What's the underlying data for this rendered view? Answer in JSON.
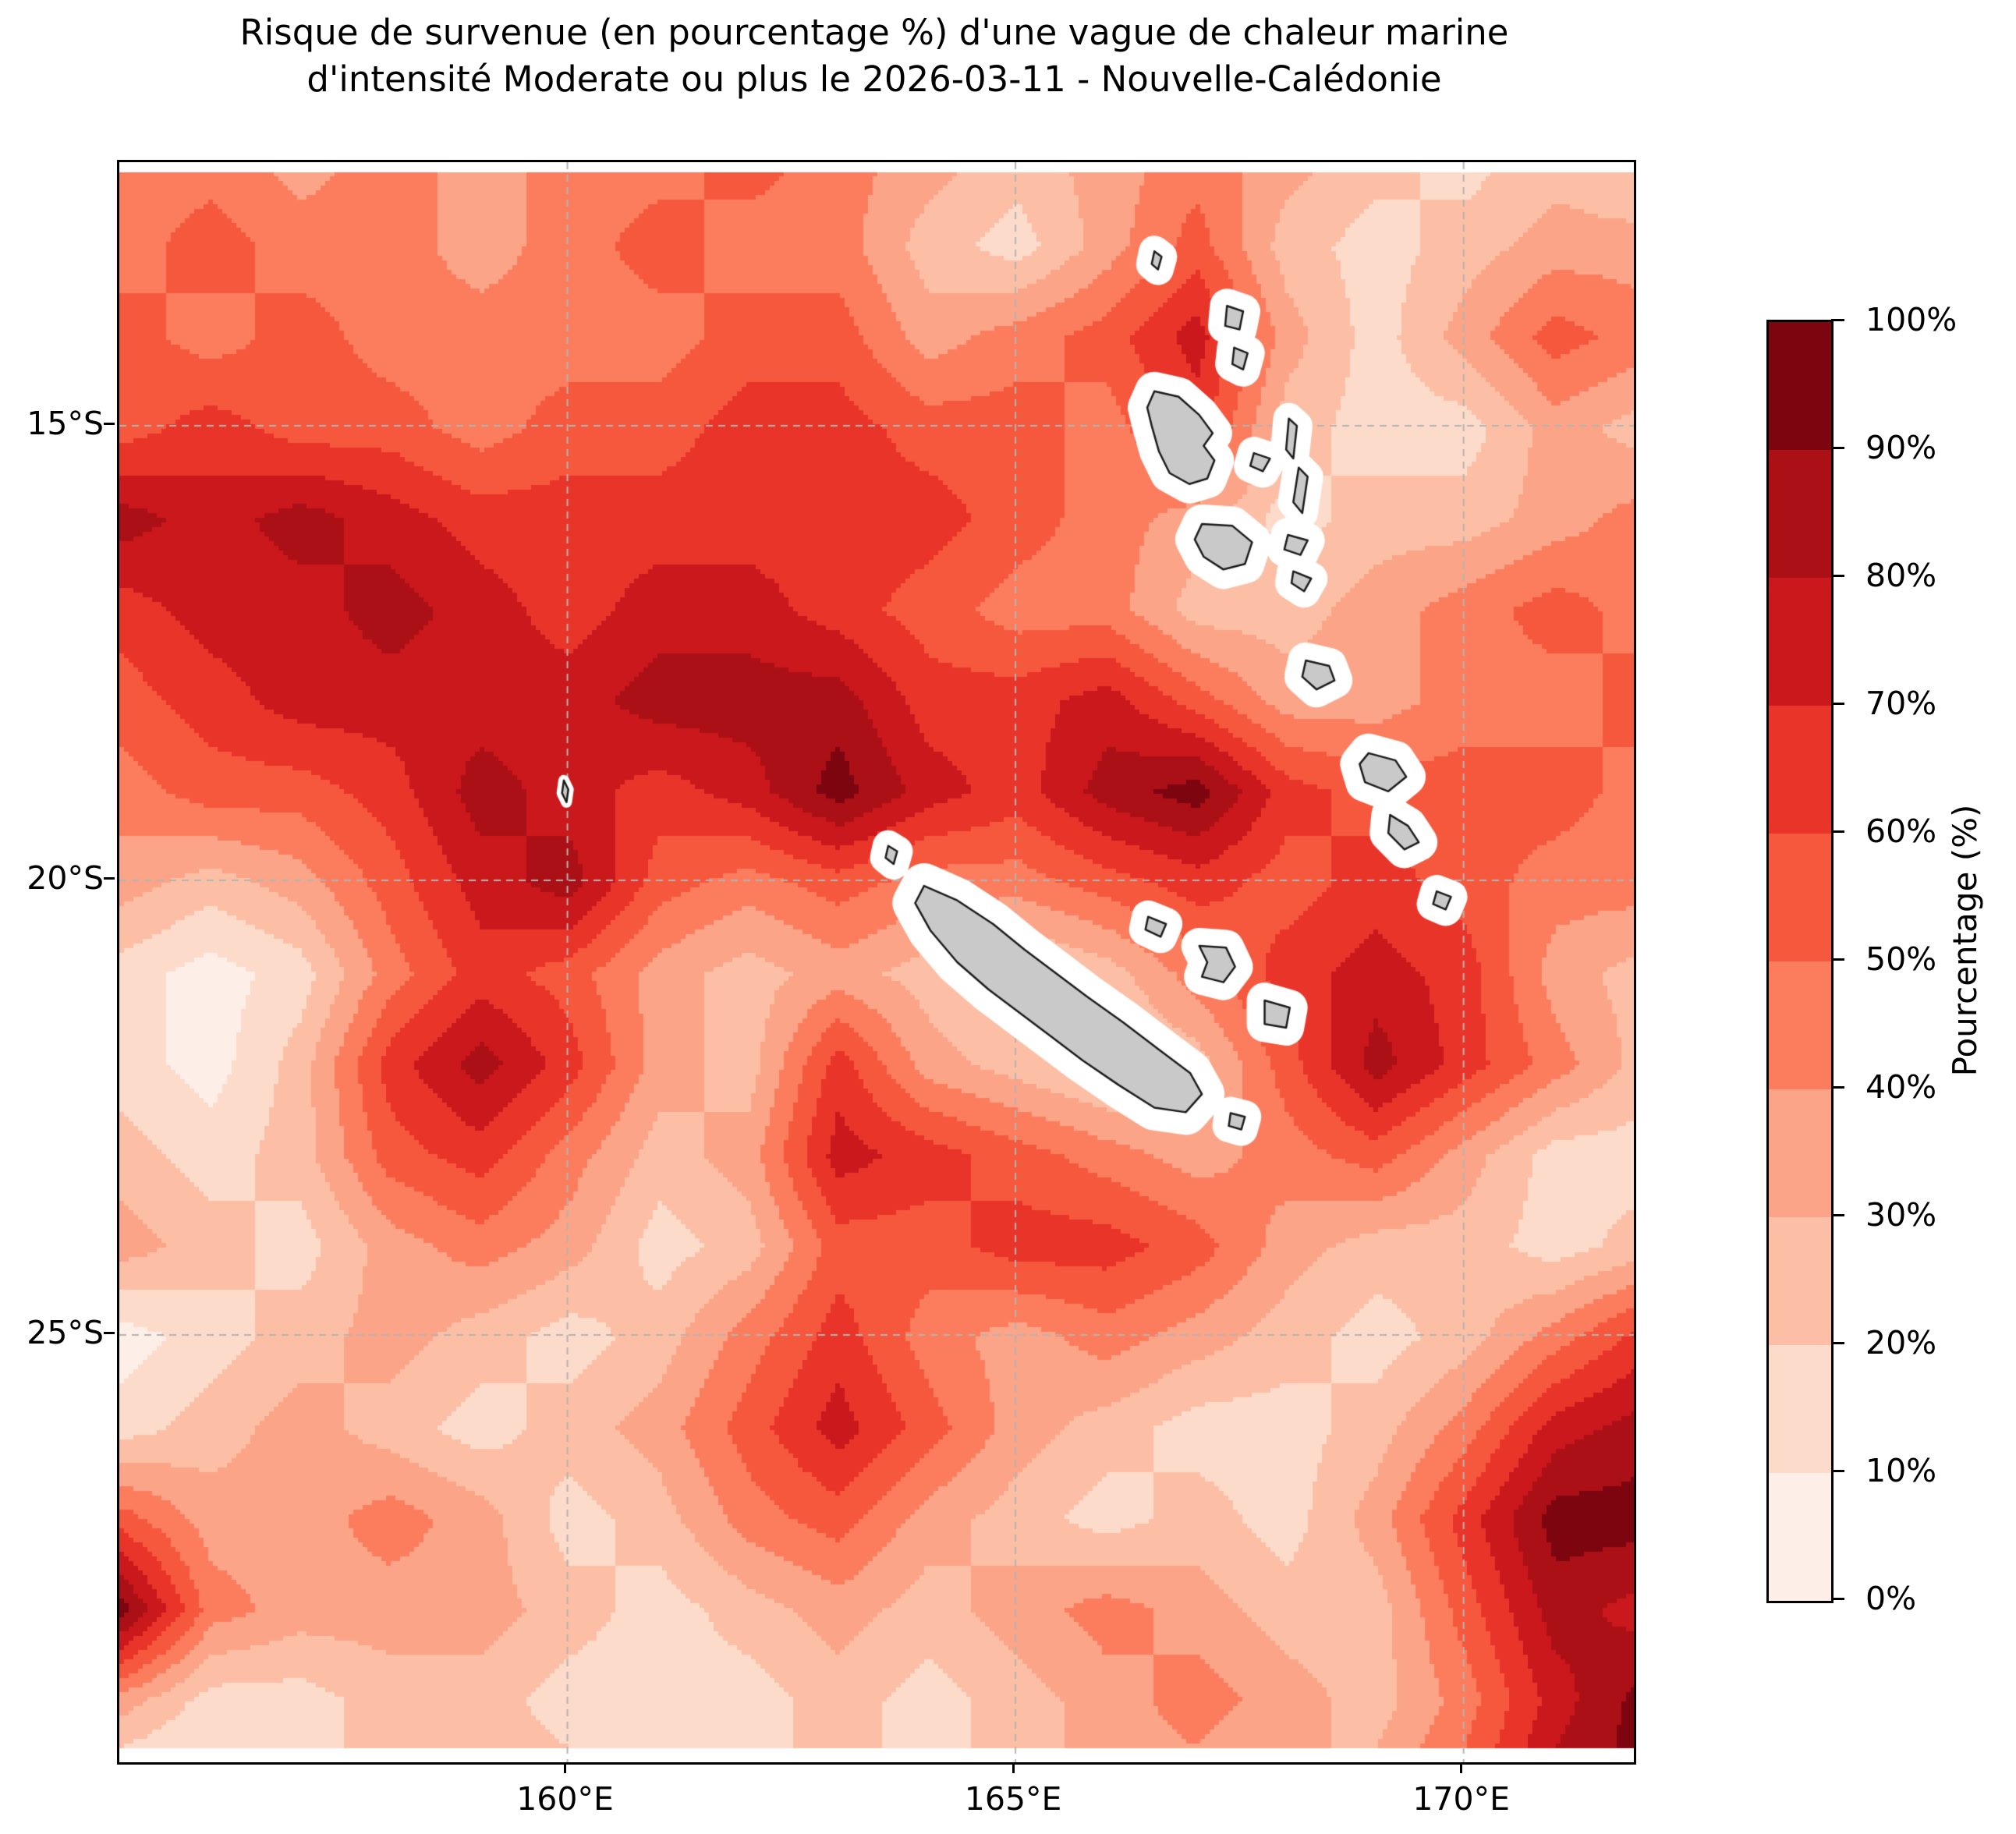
{
  "title": {
    "line1": "Risque de survenue (en pourcentage %) d'une vague de chaleur marine",
    "line2": "d'intensité Moderate ou plus le 2026-03-11 - Nouvelle-Calédonie"
  },
  "map": {
    "x_ticks": [
      {
        "label": "160°E",
        "lon": 160
      },
      {
        "label": "165°E",
        "lon": 165
      },
      {
        "label": "170°E",
        "lon": 170
      }
    ],
    "y_ticks": [
      {
        "label": "15°S",
        "lat": -15
      },
      {
        "label": "20°S",
        "lat": -20
      },
      {
        "label": "25°S",
        "lat": -25
      }
    ],
    "extent": {
      "lon_min": 155.0,
      "lon_max": 171.9,
      "lat_min": -29.7,
      "lat_max": -12.1
    },
    "grid_color": "#b3b3b3",
    "land_fill": "#c9c9c9",
    "land_outline": "#1a1a1a",
    "coast_mask_color": "#ffffff"
  },
  "colorbar": {
    "label": "Pourcentage (%)",
    "tick_labels": [
      "0%",
      "10%",
      "20%",
      "30%",
      "40%",
      "50%",
      "60%",
      "70%",
      "80%",
      "90%",
      "100%"
    ],
    "colors": [
      "#fdeee7",
      "#fddbca",
      "#fcbfa5",
      "#fca487",
      "#fb7d5e",
      "#f6583e",
      "#e93529",
      "#cb181d",
      "#ab1016",
      "#7d0510"
    ]
  },
  "chart_data": {
    "type": "heatmap",
    "title": "Risque de survenue (en pourcentage %) d'une vague de chaleur marine d'intensité Moderate ou plus le 2026-03-11 - Nouvelle-Calédonie",
    "ylabel": "Pourcentage (%)",
    "units": "percent",
    "levels_percent": [
      0,
      10,
      20,
      30,
      40,
      50,
      60,
      70,
      80,
      90,
      100
    ],
    "legend_position": "right",
    "grid_on": true,
    "lons": [
      155,
      156,
      157,
      158,
      159,
      160,
      161,
      162,
      163,
      164,
      165,
      166,
      167,
      168,
      169,
      170,
      171,
      172
    ],
    "lats": [
      -12,
      -13,
      -14,
      -15,
      -16,
      -17,
      -18,
      -19,
      -20,
      -21,
      -22,
      -23,
      -24,
      -25,
      -26,
      -27,
      -28,
      -29,
      -30
    ],
    "values_percent": [
      [
        45,
        45,
        35,
        45,
        35,
        45,
        45,
        55,
        45,
        35,
        25,
        35,
        45,
        35,
        25,
        15,
        25,
        15
      ],
      [
        45,
        55,
        45,
        45,
        35,
        45,
        55,
        45,
        45,
        25,
        15,
        35,
        55,
        25,
        15,
        25,
        35,
        35
      ],
      [
        55,
        45,
        55,
        45,
        45,
        45,
        45,
        55,
        55,
        35,
        45,
        55,
        75,
        35,
        15,
        35,
        55,
        45
      ],
      [
        55,
        65,
        55,
        55,
        45,
        55,
        55,
        65,
        65,
        55,
        55,
        45,
        65,
        25,
        15,
        15,
        35,
        25
      ],
      [
        85,
        75,
        85,
        75,
        65,
        65,
        65,
        65,
        65,
        65,
        55,
        45,
        35,
        15,
        25,
        25,
        35,
        45
      ],
      [
        65,
        75,
        75,
        85,
        75,
        65,
        75,
        75,
        65,
        55,
        45,
        45,
        25,
        25,
        35,
        45,
        55,
        45
      ],
      [
        55,
        65,
        75,
        75,
        75,
        75,
        85,
        85,
        85,
        65,
        65,
        75,
        55,
        35,
        35,
        45,
        45,
        55
      ],
      [
        45,
        55,
        55,
        65,
        85,
        75,
        65,
        75,
        95,
        75,
        65,
        85,
        95,
        65,
        55,
        55,
        55,
        45
      ],
      [
        35,
        25,
        35,
        55,
        75,
        85,
        55,
        45,
        55,
        45,
        45,
        55,
        65,
        55,
        65,
        55,
        45,
        45
      ],
      [
        15,
        5,
        15,
        45,
        65,
        55,
        35,
        25,
        35,
        25,
        15,
        25,
        45,
        65,
        75,
        65,
        35,
        25
      ],
      [
        15,
        5,
        25,
        65,
        85,
        65,
        35,
        25,
        65,
        35,
        25,
        15,
        25,
        55,
        85,
        65,
        45,
        25
      ],
      [
        25,
        15,
        25,
        55,
        65,
        45,
        25,
        35,
        75,
        65,
        55,
        45,
        35,
        45,
        55,
        35,
        15,
        15
      ],
      [
        35,
        25,
        15,
        35,
        45,
        35,
        15,
        25,
        55,
        55,
        65,
        65,
        55,
        35,
        25,
        25,
        15,
        25
      ],
      [
        5,
        15,
        25,
        35,
        25,
        15,
        25,
        45,
        65,
        45,
        35,
        45,
        35,
        25,
        15,
        25,
        45,
        65
      ],
      [
        15,
        25,
        35,
        25,
        15,
        25,
        35,
        55,
        75,
        55,
        35,
        25,
        15,
        15,
        25,
        45,
        75,
        85
      ],
      [
        55,
        35,
        35,
        45,
        35,
        15,
        25,
        45,
        55,
        35,
        25,
        15,
        25,
        15,
        35,
        65,
        95,
        95
      ],
      [
        95,
        45,
        35,
        35,
        35,
        25,
        15,
        25,
        35,
        25,
        35,
        45,
        35,
        25,
        25,
        55,
        85,
        75
      ],
      [
        35,
        15,
        15,
        25,
        25,
        15,
        15,
        15,
        25,
        15,
        25,
        35,
        45,
        35,
        25,
        45,
        75,
        95
      ],
      [
        5,
        5,
        15,
        25,
        25,
        25,
        15,
        15,
        25,
        15,
        25,
        35,
        35,
        25,
        35,
        55,
        85,
        95
      ]
    ],
    "land_features": [
      {
        "name": "grande-terre",
        "halo": 58,
        "polygon": [
          [
            163.98,
            -20.06
          ],
          [
            164.35,
            -20.22
          ],
          [
            164.75,
            -20.48
          ],
          [
            165.1,
            -20.76
          ],
          [
            165.45,
            -21.02
          ],
          [
            165.8,
            -21.28
          ],
          [
            166.2,
            -21.56
          ],
          [
            166.6,
            -21.86
          ],
          [
            166.95,
            -22.12
          ],
          [
            167.08,
            -22.35
          ],
          [
            166.9,
            -22.55
          ],
          [
            166.55,
            -22.5
          ],
          [
            166.15,
            -22.25
          ],
          [
            165.75,
            -21.98
          ],
          [
            165.4,
            -21.72
          ],
          [
            165.05,
            -21.46
          ],
          [
            164.7,
            -21.2
          ],
          [
            164.35,
            -20.9
          ],
          [
            164.05,
            -20.55
          ],
          [
            163.88,
            -20.25
          ]
        ]
      },
      {
        "name": "belep",
        "halo": 40,
        "polygon": [
          [
            163.58,
            -19.62
          ],
          [
            163.68,
            -19.68
          ],
          [
            163.64,
            -19.82
          ],
          [
            163.55,
            -19.75
          ]
        ]
      },
      {
        "name": "islet-160e",
        "halo": 14,
        "polygon": [
          [
            159.96,
            -18.9
          ],
          [
            160.01,
            -19.0
          ],
          [
            159.99,
            -19.14
          ],
          [
            159.94,
            -19.04
          ]
        ]
      },
      {
        "name": "ouvea",
        "halo": 42,
        "polygon": [
          [
            166.48,
            -20.4
          ],
          [
            166.68,
            -20.48
          ],
          [
            166.62,
            -20.62
          ],
          [
            166.45,
            -20.54
          ]
        ]
      },
      {
        "name": "lifou",
        "halo": 46,
        "polygon": [
          [
            167.05,
            -20.72
          ],
          [
            167.35,
            -20.74
          ],
          [
            167.45,
            -20.95
          ],
          [
            167.32,
            -21.12
          ],
          [
            167.08,
            -21.06
          ],
          [
            167.14,
            -20.9
          ]
        ]
      },
      {
        "name": "mare",
        "halo": 46,
        "polygon": [
          [
            167.78,
            -21.32
          ],
          [
            168.06,
            -21.4
          ],
          [
            168.02,
            -21.62
          ],
          [
            167.78,
            -21.58
          ]
        ]
      },
      {
        "name": "ile-des-pins",
        "halo": 42,
        "polygon": [
          [
            167.4,
            -22.56
          ],
          [
            167.56,
            -22.6
          ],
          [
            167.52,
            -22.74
          ],
          [
            167.38,
            -22.7
          ]
        ]
      },
      {
        "name": "torres",
        "halo": 40,
        "polygon": [
          [
            166.55,
            -13.08
          ],
          [
            166.63,
            -13.14
          ],
          [
            166.59,
            -13.28
          ],
          [
            166.52,
            -13.22
          ]
        ]
      },
      {
        "name": "vanua-lava",
        "halo": 44,
        "polygon": [
          [
            167.36,
            -13.68
          ],
          [
            167.54,
            -13.74
          ],
          [
            167.5,
            -13.94
          ],
          [
            167.34,
            -13.9
          ]
        ]
      },
      {
        "name": "gaua",
        "halo": 44,
        "polygon": [
          [
            167.44,
            -14.14
          ],
          [
            167.59,
            -14.2
          ],
          [
            167.54,
            -14.38
          ],
          [
            167.42,
            -14.32
          ]
        ]
      },
      {
        "name": "espiritu-santo",
        "halo": 50,
        "polygon": [
          [
            166.55,
            -14.62
          ],
          [
            166.82,
            -14.68
          ],
          [
            167.05,
            -14.88
          ],
          [
            167.2,
            -15.08
          ],
          [
            167.1,
            -15.22
          ],
          [
            167.22,
            -15.38
          ],
          [
            167.14,
            -15.58
          ],
          [
            166.94,
            -15.64
          ],
          [
            166.72,
            -15.52
          ],
          [
            166.6,
            -15.28
          ],
          [
            166.52,
            -15.0
          ],
          [
            166.47,
            -14.8
          ]
        ]
      },
      {
        "name": "maewo",
        "halo": 40,
        "polygon": [
          [
            168.05,
            -14.92
          ],
          [
            168.14,
            -15.0
          ],
          [
            168.1,
            -15.36
          ],
          [
            168.02,
            -15.26
          ]
        ]
      },
      {
        "name": "ambae",
        "halo": 42,
        "polygon": [
          [
            167.66,
            -15.3
          ],
          [
            167.84,
            -15.36
          ],
          [
            167.76,
            -15.5
          ],
          [
            167.62,
            -15.44
          ]
        ]
      },
      {
        "name": "pentecost",
        "halo": 40,
        "polygon": [
          [
            168.16,
            -15.46
          ],
          [
            168.26,
            -15.56
          ],
          [
            168.2,
            -15.96
          ],
          [
            168.1,
            -15.84
          ]
        ]
      },
      {
        "name": "malakula",
        "halo": 50,
        "polygon": [
          [
            167.08,
            -16.08
          ],
          [
            167.42,
            -16.1
          ],
          [
            167.64,
            -16.28
          ],
          [
            167.56,
            -16.52
          ],
          [
            167.32,
            -16.58
          ],
          [
            167.1,
            -16.44
          ],
          [
            167.0,
            -16.25
          ]
        ]
      },
      {
        "name": "ambrym",
        "halo": 44,
        "polygon": [
          [
            168.04,
            -16.2
          ],
          [
            168.26,
            -16.26
          ],
          [
            168.18,
            -16.42
          ],
          [
            168.0,
            -16.36
          ]
        ]
      },
      {
        "name": "epi",
        "halo": 42,
        "polygon": [
          [
            168.1,
            -16.6
          ],
          [
            168.3,
            -16.68
          ],
          [
            168.22,
            -16.82
          ],
          [
            168.08,
            -16.73
          ]
        ]
      },
      {
        "name": "efate",
        "halo": 46,
        "polygon": [
          [
            168.24,
            -17.58
          ],
          [
            168.5,
            -17.64
          ],
          [
            168.56,
            -17.8
          ],
          [
            168.36,
            -17.9
          ],
          [
            168.2,
            -17.76
          ]
        ]
      },
      {
        "name": "erromango",
        "halo": 50,
        "polygon": [
          [
            168.94,
            -18.6
          ],
          [
            169.24,
            -18.68
          ],
          [
            169.36,
            -18.86
          ],
          [
            169.16,
            -19.02
          ],
          [
            168.9,
            -18.92
          ],
          [
            168.84,
            -18.72
          ]
        ]
      },
      {
        "name": "tanna",
        "halo": 48,
        "polygon": [
          [
            169.18,
            -19.28
          ],
          [
            169.38,
            -19.4
          ],
          [
            169.5,
            -19.58
          ],
          [
            169.34,
            -19.66
          ],
          [
            169.16,
            -19.48
          ]
        ]
      },
      {
        "name": "aneityum",
        "halo": 42,
        "polygon": [
          [
            169.7,
            -20.12
          ],
          [
            169.86,
            -20.18
          ],
          [
            169.8,
            -20.32
          ],
          [
            169.66,
            -20.26
          ]
        ]
      }
    ]
  }
}
